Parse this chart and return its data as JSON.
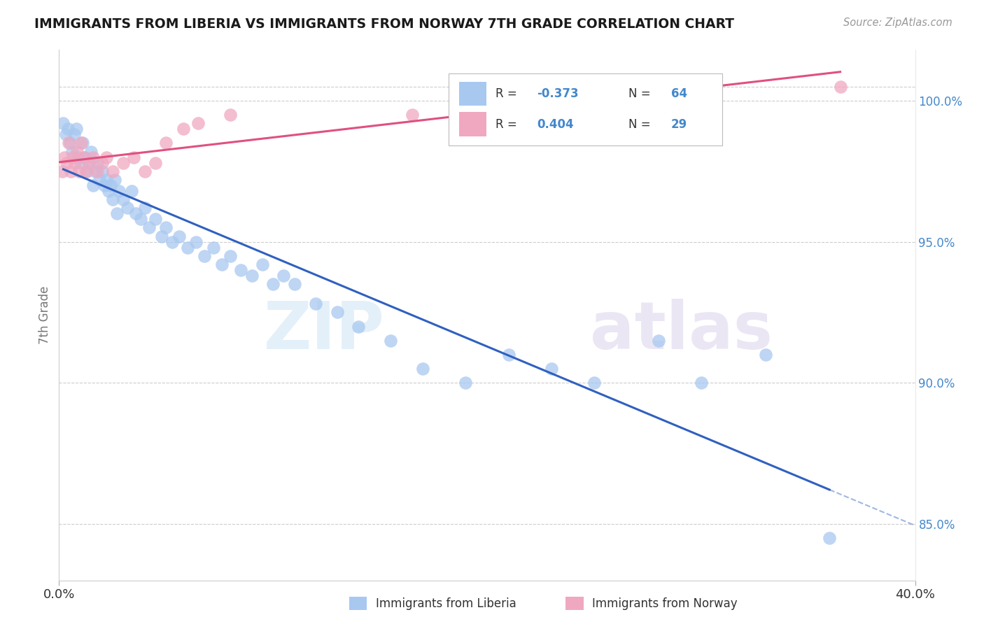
{
  "title": "IMMIGRANTS FROM LIBERIA VS IMMIGRANTS FROM NORWAY 7TH GRADE CORRELATION CHART",
  "source": "Source: ZipAtlas.com",
  "ylabel": "7th Grade",
  "xlim": [
    0.0,
    40.0
  ],
  "ylim": [
    83.0,
    101.8
  ],
  "liberia_color": "#a8c8f0",
  "norway_color": "#f0a8c0",
  "liberia_R": -0.373,
  "liberia_N": 64,
  "norway_R": 0.404,
  "norway_N": 29,
  "liberia_line_color": "#3060c0",
  "norway_line_color": "#e05080",
  "watermark_zip": "ZIP",
  "watermark_atlas": "atlas",
  "legend_label_liberia": "Immigrants from Liberia",
  "legend_label_norway": "Immigrants from Norway",
  "yticks": [
    85.0,
    90.0,
    95.0,
    100.0
  ],
  "ytick_labels": [
    "85.0%",
    "90.0%",
    "95.0%",
    "100.0%"
  ],
  "liberia_x": [
    0.2,
    0.3,
    0.4,
    0.5,
    0.6,
    0.7,
    0.8,
    0.9,
    1.0,
    1.1,
    1.2,
    1.3,
    1.4,
    1.5,
    1.6,
    1.7,
    1.8,
    1.9,
    2.0,
    2.1,
    2.2,
    2.3,
    2.4,
    2.5,
    2.6,
    2.7,
    2.8,
    3.0,
    3.2,
    3.4,
    3.6,
    3.8,
    4.0,
    4.2,
    4.5,
    4.8,
    5.0,
    5.3,
    5.6,
    6.0,
    6.4,
    6.8,
    7.2,
    7.6,
    8.0,
    8.5,
    9.0,
    9.5,
    10.0,
    10.5,
    11.0,
    12.0,
    13.0,
    14.0,
    15.5,
    17.0,
    19.0,
    21.0,
    23.0,
    25.0,
    28.0,
    30.0,
    33.0,
    36.0
  ],
  "liberia_y": [
    99.2,
    98.8,
    99.0,
    98.5,
    98.2,
    98.8,
    99.0,
    98.0,
    97.8,
    98.5,
    98.0,
    97.5,
    97.8,
    98.2,
    97.0,
    97.5,
    97.8,
    97.2,
    97.5,
    97.0,
    97.2,
    96.8,
    97.0,
    96.5,
    97.2,
    96.0,
    96.8,
    96.5,
    96.2,
    96.8,
    96.0,
    95.8,
    96.2,
    95.5,
    95.8,
    95.2,
    95.5,
    95.0,
    95.2,
    94.8,
    95.0,
    94.5,
    94.8,
    94.2,
    94.5,
    94.0,
    93.8,
    94.2,
    93.5,
    93.8,
    93.5,
    92.8,
    92.5,
    92.0,
    91.5,
    90.5,
    90.0,
    91.0,
    90.5,
    90.0,
    91.5,
    90.0,
    91.0,
    84.5
  ],
  "norway_x": [
    0.15,
    0.25,
    0.35,
    0.45,
    0.55,
    0.65,
    0.75,
    0.85,
    0.95,
    1.05,
    1.15,
    1.25,
    1.4,
    1.6,
    1.8,
    2.0,
    2.2,
    2.5,
    3.0,
    3.5,
    4.0,
    4.5,
    5.0,
    5.8,
    6.5,
    8.0,
    16.5,
    24.5,
    36.5
  ],
  "norway_y": [
    97.5,
    98.0,
    97.8,
    98.5,
    97.5,
    98.0,
    97.8,
    98.2,
    97.5,
    98.5,
    98.0,
    97.5,
    97.8,
    98.0,
    97.5,
    97.8,
    98.0,
    97.5,
    97.8,
    98.0,
    97.5,
    97.8,
    98.5,
    99.0,
    99.2,
    99.5,
    99.5,
    100.2,
    100.5
  ]
}
